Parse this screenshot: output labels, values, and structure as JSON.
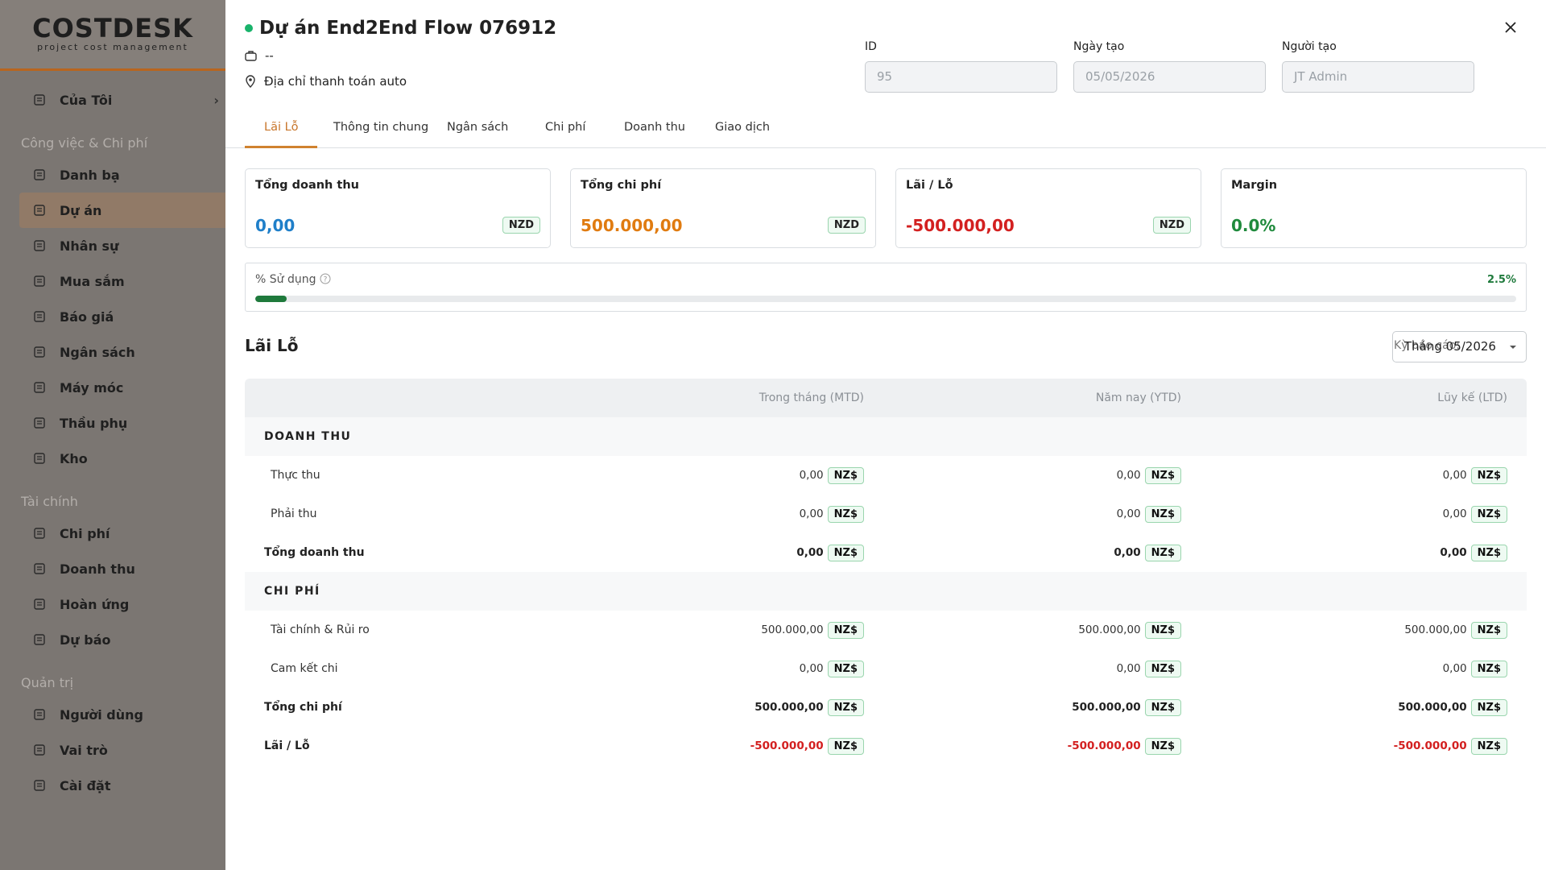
{
  "sidebar": {
    "logo": "COSTDESK",
    "tagline": "project cost management",
    "top_item": "Của Tôi",
    "groups": [
      {
        "title": "Công việc & Chi phí",
        "items": [
          "Danh bạ",
          "Dự án",
          "Nhân sự",
          "Mua sắm",
          "Báo giá",
          "Ngân sách",
          "Máy móc",
          "Thầu phụ",
          "Kho"
        ]
      },
      {
        "title": "Tài chính",
        "items": [
          "Chi phí",
          "Doanh thu",
          "Hoàn ứng",
          "Dự báo"
        ]
      },
      {
        "title": "Quản trị",
        "items": [
          "Người dùng",
          "Vai trò",
          "Cài đặt"
        ]
      }
    ]
  },
  "header": {
    "title": "Dự án End2End Flow 076912",
    "subtitle": "--",
    "address": "Địa chỉ thanh toán auto",
    "fields": [
      {
        "label": "ID",
        "value": "95"
      },
      {
        "label": "Ngày tạo",
        "value": "05/05/2026"
      },
      {
        "label": "Người tạo",
        "value": "JT Admin"
      }
    ]
  },
  "tabs": [
    "Lãi Lỗ",
    "Thông tin chung",
    "Ngân sách",
    "Chi phí",
    "Doanh thu",
    "Giao dịch"
  ],
  "cards": [
    {
      "label": "Tổng doanh thu",
      "value": "0,00",
      "currency": "NZD"
    },
    {
      "label": "Tổng chi phí",
      "value": "500.000,00",
      "currency": "NZD"
    },
    {
      "label": "Lãi / Lỗ",
      "value": "-500.000,00",
      "currency": "NZD"
    },
    {
      "label": "Margin",
      "value": "0.0%"
    }
  ],
  "usage": {
    "label": "% Sử dụng",
    "value": 2.5,
    "value_label": "2.5%"
  },
  "pnl": {
    "title": "Lãi Lỗ",
    "period_label": "Kỳ báo cáo:",
    "period": "Tháng 05/2026",
    "columns": [
      "Trong tháng (MTD)",
      "Năm nay (YTD)",
      "Lũy kế (LTD)"
    ],
    "currency": "NZ$",
    "sections": [
      {
        "title": "DOANH THU",
        "items": [
          {
            "label": "Thực thu",
            "values": [
              "0,00",
              "0,00",
              "0,00"
            ]
          },
          {
            "label": "Phải thu",
            "values": [
              "0,00",
              "0,00",
              "0,00"
            ]
          }
        ],
        "total": {
          "label": "Tổng doanh thu",
          "values": [
            "0,00",
            "0,00",
            "0,00"
          ]
        }
      },
      {
        "title": "CHI PHÍ",
        "items": [
          {
            "label": "Tài chính & Rủi ro",
            "values": [
              "500.000,00",
              "500.000,00",
              "500.000,00"
            ]
          },
          {
            "label": "Cam kết chi",
            "values": [
              "0,00",
              "0,00",
              "0,00"
            ]
          }
        ],
        "total": {
          "label": "Tổng chi phí",
          "values": [
            "500.000,00",
            "500.000,00",
            "500.000,00"
          ]
        }
      }
    ],
    "result": {
      "label": "Lãi / Lỗ",
      "values": [
        "-500.000,00",
        "-500.000,00",
        "-500.000,00"
      ]
    }
  }
}
